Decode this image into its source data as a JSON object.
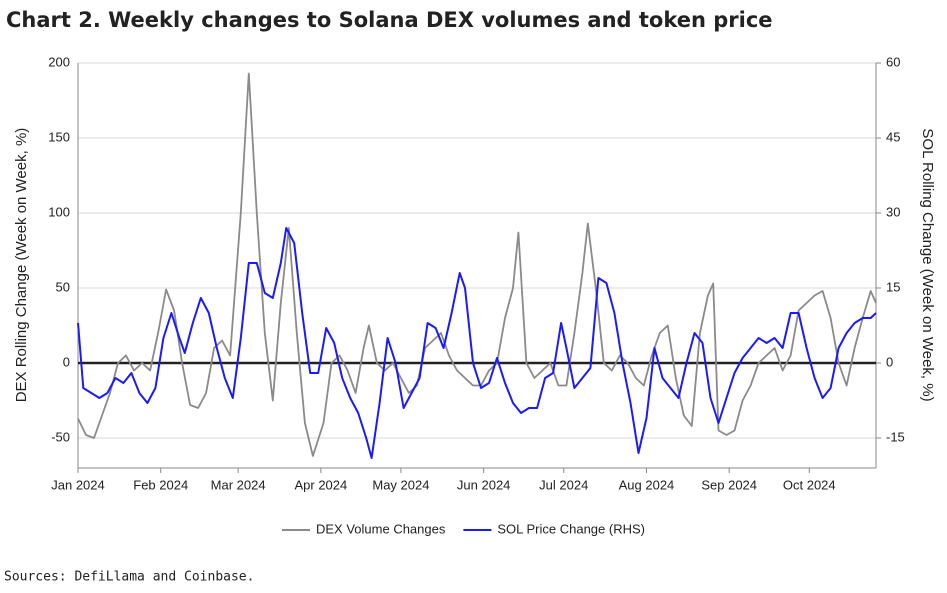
{
  "chart_data": {
    "type": "line",
    "title": "Chart 2. Weekly changes to Solana DEX volumes and token price",
    "ylabel": "DEX Rolling Change (Week on Week, %)",
    "y2label": "SOL Rolling Change (Week on Week, %)",
    "source": "Sources: DefiLlama and Coinbase.",
    "xlim": [
      0,
      299
    ],
    "xticks": [
      {
        "value": 0,
        "label": "Jan 2024"
      },
      {
        "value": 31,
        "label": "Feb 2024"
      },
      {
        "value": 60,
        "label": "Mar 2024"
      },
      {
        "value": 91,
        "label": "Apr 2024"
      },
      {
        "value": 121,
        "label": "May 2024"
      },
      {
        "value": 152,
        "label": "Jun 2024"
      },
      {
        "value": 182,
        "label": "Jul 2024"
      },
      {
        "value": 213,
        "label": "Aug 2024"
      },
      {
        "value": 244,
        "label": "Sep 2024"
      },
      {
        "value": 274,
        "label": "Oct 2024"
      }
    ],
    "ylim": [
      -70,
      200
    ],
    "yticks": [
      -50,
      0,
      50,
      100,
      150,
      200
    ],
    "y2lim": [
      -21,
      60
    ],
    "y2ticks": [
      -15,
      0,
      15,
      30,
      45,
      60
    ],
    "grid": true,
    "legend": "bottom",
    "series": [
      {
        "name": "DEX Volume Changes",
        "color": "#8a8a8a",
        "x": [
          0,
          3,
          6,
          9,
          12,
          15,
          18,
          21,
          24,
          27,
          30,
          33,
          36,
          39,
          42,
          45,
          48,
          51,
          54,
          57,
          61,
          64,
          67,
          70,
          73,
          76,
          79,
          82,
          85,
          88,
          92,
          95,
          98,
          101,
          104,
          107,
          109,
          112,
          115,
          118,
          121,
          124,
          127,
          130,
          133,
          136,
          139,
          142,
          145,
          148,
          151,
          154,
          157,
          160,
          163,
          165,
          168,
          171,
          174,
          177,
          180,
          183,
          186,
          189,
          191,
          194,
          197,
          200,
          203,
          206,
          209,
          212,
          215,
          218,
          221,
          224,
          227,
          230,
          233,
          236,
          238,
          240,
          243,
          246,
          249,
          252,
          255,
          258,
          261,
          264,
          267,
          270,
          273,
          276,
          279,
          282,
          285,
          288,
          291,
          294,
          297,
          299
        ],
        "values": [
          -37,
          -48,
          -50,
          -35,
          -20,
          0,
          5,
          -5,
          0,
          -5,
          20,
          49,
          35,
          0,
          -28,
          -30,
          -20,
          10,
          15,
          5,
          100,
          193,
          100,
          20,
          -25,
          40,
          90,
          20,
          -40,
          -62,
          -40,
          0,
          5,
          -5,
          -20,
          10,
          25,
          0,
          -5,
          0,
          -10,
          -20,
          -15,
          10,
          15,
          20,
          5,
          -5,
          -10,
          -15,
          -15,
          -5,
          0,
          30,
          50,
          87,
          0,
          -10,
          -5,
          0,
          -15,
          -15,
          20,
          60,
          93,
          50,
          0,
          -5,
          5,
          0,
          -10,
          -15,
          5,
          20,
          25,
          -10,
          -35,
          -42,
          20,
          45,
          53,
          -45,
          -48,
          -45,
          -25,
          -15,
          0,
          5,
          10,
          -5,
          5,
          35,
          40,
          45,
          48,
          30,
          0,
          -15,
          10,
          30,
          48,
          40
        ]
      },
      {
        "name": "SOL Price Change (RHS)",
        "color": "#1a1aff",
        "axis": "y2",
        "x": [
          0,
          2,
          5,
          8,
          11,
          14,
          17,
          20,
          23,
          26,
          29,
          32,
          35,
          38,
          40,
          43,
          46,
          49,
          52,
          55,
          58,
          61,
          64,
          67,
          70,
          73,
          76,
          78,
          81,
          84,
          87,
          90,
          93,
          96,
          99,
          102,
          105,
          108,
          110,
          113,
          116,
          119,
          122,
          125,
          128,
          131,
          134,
          137,
          140,
          143,
          145,
          148,
          151,
          154,
          157,
          160,
          163,
          166,
          169,
          172,
          175,
          178,
          181,
          183,
          186,
          189,
          192,
          195,
          198,
          201,
          204,
          207,
          210,
          213,
          216,
          219,
          222,
          225,
          228,
          231,
          234,
          237,
          240,
          243,
          246,
          249,
          252,
          255,
          258,
          261,
          264,
          267,
          270,
          273,
          276,
          279,
          282,
          285,
          288,
          291,
          294,
          297,
          299
        ],
        "values": [
          8,
          -5,
          -6,
          -7,
          -6,
          -3,
          -4,
          -2,
          -6,
          -8,
          -5,
          5,
          10,
          5,
          2,
          8,
          13,
          10,
          3,
          -3,
          -7,
          5,
          20,
          20,
          14,
          13,
          20,
          27,
          24,
          10,
          -2,
          -2,
          7,
          4,
          -3,
          -7,
          -10,
          -15,
          -19,
          -8,
          5,
          0,
          -9,
          -6,
          -3,
          8,
          7,
          3,
          10,
          18,
          15,
          0,
          -5,
          -4,
          1,
          -4,
          -8,
          -10,
          -9,
          -9,
          -3,
          -2,
          8,
          3,
          -5,
          -3,
          -1,
          17,
          16,
          10,
          0,
          -8,
          -18,
          -11,
          3,
          -3,
          -5,
          -7,
          0,
          6,
          4,
          -7,
          -12,
          -7,
          -2,
          1,
          3,
          5,
          4,
          5,
          3,
          10,
          10,
          3,
          -3,
          -7,
          -5,
          3,
          6,
          8,
          9,
          9,
          10
        ]
      }
    ]
  }
}
